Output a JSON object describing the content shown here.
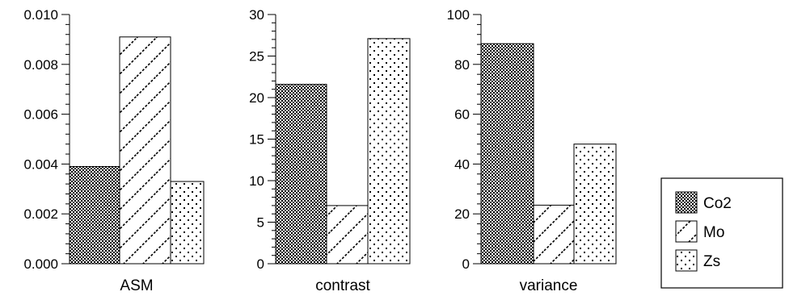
{
  "chart_data": [
    {
      "type": "bar",
      "xlabel": "ASM",
      "ylim": [
        0,
        0.01
      ],
      "yticks": [
        "0.000",
        "0.002",
        "0.004",
        "0.006",
        "0.008",
        "0.010"
      ],
      "series": [
        {
          "name": "Co2",
          "values": [
            0.0039
          ]
        },
        {
          "name": "Mo",
          "values": [
            0.0091
          ]
        },
        {
          "name": "Zs",
          "values": [
            0.0033
          ]
        }
      ]
    },
    {
      "type": "bar",
      "xlabel": "contrast",
      "ylim": [
        0,
        30
      ],
      "yticks": [
        "0",
        "5",
        "10",
        "15",
        "20",
        "25",
        "30"
      ],
      "series": [
        {
          "name": "Co2",
          "values": [
            21.6
          ]
        },
        {
          "name": "Mo",
          "values": [
            7.0
          ]
        },
        {
          "name": "Zs",
          "values": [
            27.1
          ]
        }
      ]
    },
    {
      "type": "bar",
      "xlabel": "variance",
      "ylim": [
        0,
        100
      ],
      "yticks": [
        "0",
        "20",
        "40",
        "60",
        "80",
        "100"
      ],
      "series": [
        {
          "name": "Co2",
          "values": [
            88.3
          ]
        },
        {
          "name": "Mo",
          "values": [
            23.5
          ]
        },
        {
          "name": "Zs",
          "values": [
            48.0
          ]
        }
      ]
    }
  ],
  "legend": {
    "position": "right",
    "items": [
      {
        "label": "Co2",
        "pattern": "checker"
      },
      {
        "label": "Mo",
        "pattern": "diagonal"
      },
      {
        "label": "Zs",
        "pattern": "dots"
      }
    ]
  }
}
